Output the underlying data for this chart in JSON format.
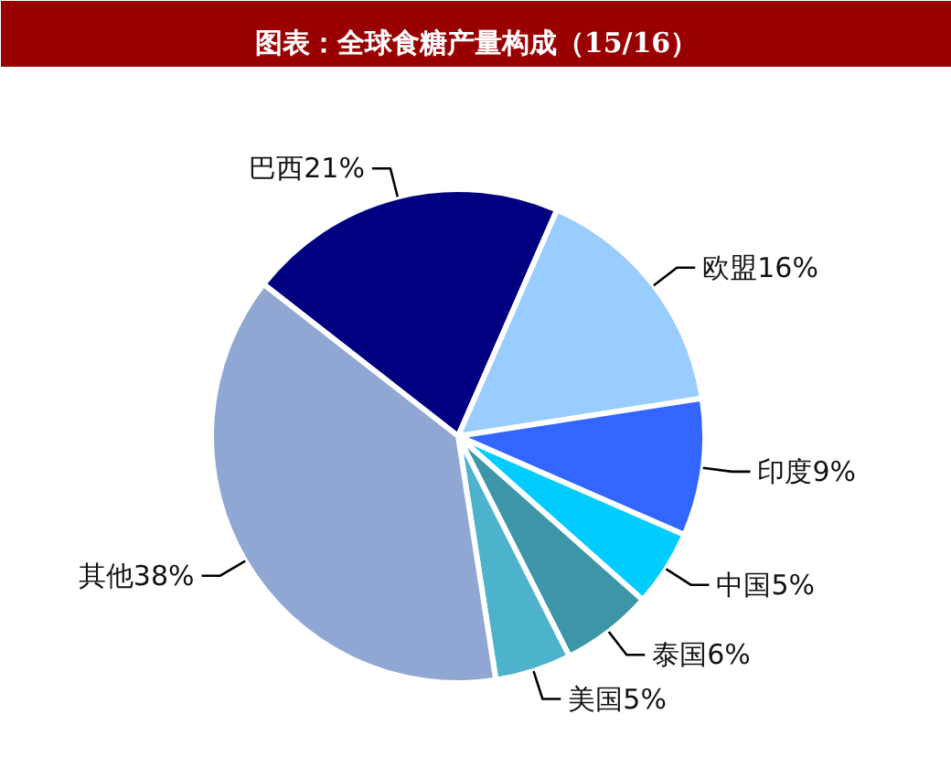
{
  "chart_data": {
    "type": "pie",
    "title": "图表：全球食糖产量构成（15/16）",
    "categories": [
      "巴西",
      "欧盟",
      "印度",
      "中国",
      "泰国",
      "美国",
      "其他"
    ],
    "values": [
      21,
      16,
      9,
      5,
      6,
      5,
      38
    ],
    "colors": [
      "#000080",
      "#99ccff",
      "#3366ff",
      "#00ccff",
      "#3d96a8",
      "#4db3cc",
      "#91a7d3"
    ],
    "value_labels": [
      "21%",
      "16%",
      "9%",
      "5%",
      "6%",
      "5%",
      "38%"
    ]
  }
}
